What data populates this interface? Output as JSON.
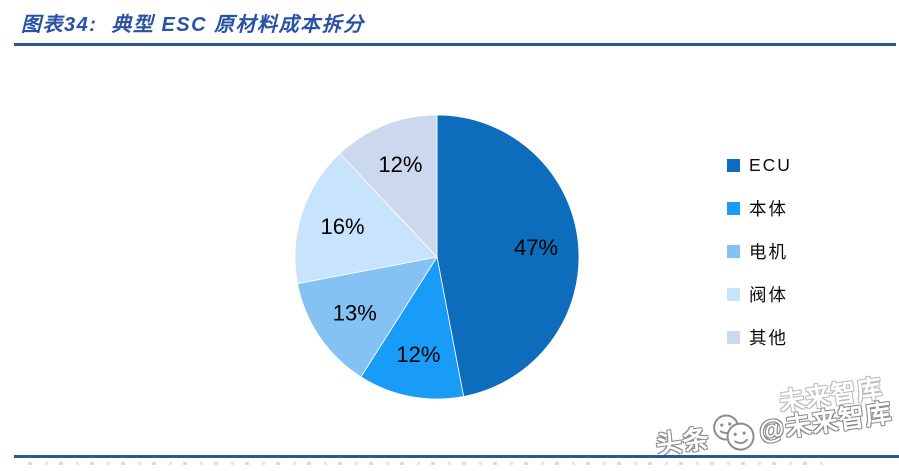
{
  "header": {
    "figure_label": "图表34:",
    "figure_title": "典型 ESC 原材料成本拆分"
  },
  "chart_data": {
    "type": "pie",
    "title": "典型 ESC 原材料成本拆分",
    "categories": [
      "ECU",
      "本体",
      "电机",
      "阀体",
      "其他"
    ],
    "values": [
      47,
      12,
      13,
      16,
      12
    ],
    "data_labels": [
      "47%",
      "12%",
      "13%",
      "16%",
      "12%"
    ],
    "colors": [
      "#0d6cbc",
      "#199bf8",
      "#84c2f4",
      "#c7e4fc",
      "#ccd8ee"
    ],
    "start_angle_deg": 0,
    "direction": "clockwise",
    "legend_position": "right",
    "label_color": "#000000"
  },
  "watermark": {
    "prefix": "头条",
    "suffix": "@未来智库",
    "ghost": "未来智库"
  },
  "accent_colors": {
    "title_text": "#2a52a3",
    "rule": "#2b5796"
  }
}
